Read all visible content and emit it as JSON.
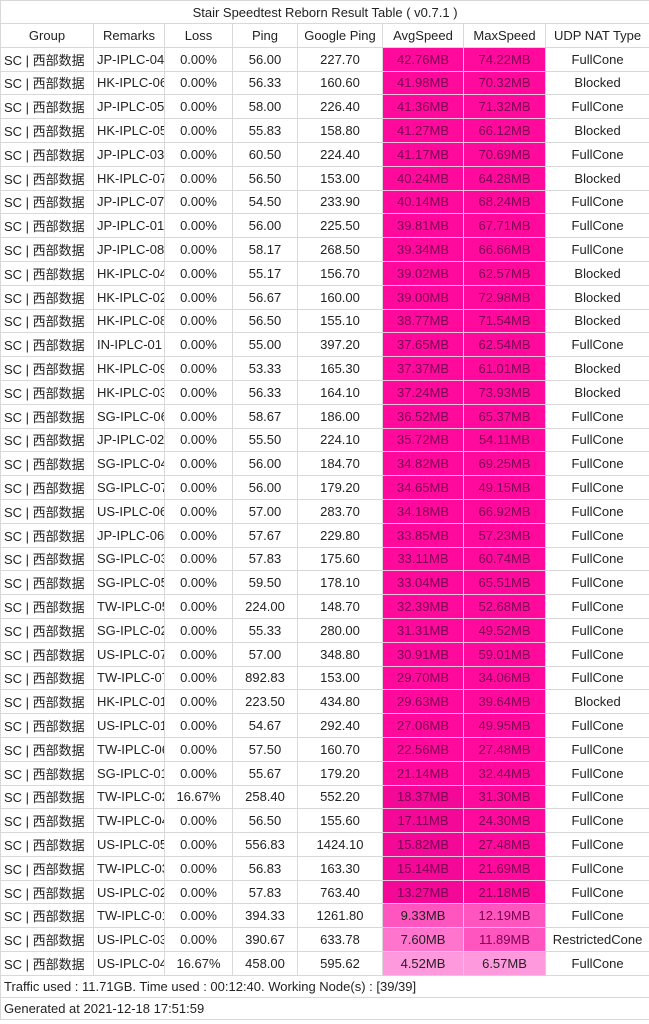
{
  "title": "Stair Speedtest Reborn Result Table ( v0.7.1 )",
  "columns": [
    "Group",
    "Remarks",
    "Loss",
    "Ping",
    "Google Ping",
    "AvgSpeed",
    "MaxSpeed",
    "UDP NAT Type"
  ],
  "rows": [
    [
      "SC | 西部数据",
      "JP-IPLC-04",
      "0.00%",
      "56.00",
      "227.70",
      "42.76MB",
      "74.22MB",
      "FullCone"
    ],
    [
      "SC | 西部数据",
      "HK-IPLC-06",
      "0.00%",
      "56.33",
      "160.60",
      "41.98MB",
      "70.32MB",
      "Blocked"
    ],
    [
      "SC | 西部数据",
      "JP-IPLC-05",
      "0.00%",
      "58.00",
      "226.40",
      "41.36MB",
      "71.32MB",
      "FullCone"
    ],
    [
      "SC | 西部数据",
      "HK-IPLC-05",
      "0.00%",
      "55.83",
      "158.80",
      "41.27MB",
      "66.12MB",
      "Blocked"
    ],
    [
      "SC | 西部数据",
      "JP-IPLC-03",
      "0.00%",
      "60.50",
      "224.40",
      "41.17MB",
      "70.69MB",
      "FullCone"
    ],
    [
      "SC | 西部数据",
      "HK-IPLC-07",
      "0.00%",
      "56.50",
      "153.00",
      "40.24MB",
      "64.28MB",
      "Blocked"
    ],
    [
      "SC | 西部数据",
      "JP-IPLC-07",
      "0.00%",
      "54.50",
      "233.90",
      "40.14MB",
      "68.24MB",
      "FullCone"
    ],
    [
      "SC | 西部数据",
      "JP-IPLC-01",
      "0.00%",
      "56.00",
      "225.50",
      "39.81MB",
      "67.71MB",
      "FullCone"
    ],
    [
      "SC | 西部数据",
      "JP-IPLC-08",
      "0.00%",
      "58.17",
      "268.50",
      "39.34MB",
      "66.66MB",
      "FullCone"
    ],
    [
      "SC | 西部数据",
      "HK-IPLC-04",
      "0.00%",
      "55.17",
      "156.70",
      "39.02MB",
      "62.57MB",
      "Blocked"
    ],
    [
      "SC | 西部数据",
      "HK-IPLC-02",
      "0.00%",
      "56.67",
      "160.00",
      "39.00MB",
      "72.98MB",
      "Blocked"
    ],
    [
      "SC | 西部数据",
      "HK-IPLC-08",
      "0.00%",
      "56.50",
      "155.10",
      "38.77MB",
      "71.54MB",
      "Blocked"
    ],
    [
      "SC | 西部数据",
      "IN-IPLC-01",
      "0.00%",
      "55.00",
      "397.20",
      "37.65MB",
      "62.54MB",
      "FullCone"
    ],
    [
      "SC | 西部数据",
      "HK-IPLC-09",
      "0.00%",
      "53.33",
      "165.30",
      "37.37MB",
      "61.01MB",
      "Blocked"
    ],
    [
      "SC | 西部数据",
      "HK-IPLC-03",
      "0.00%",
      "56.33",
      "164.10",
      "37.24MB",
      "73.93MB",
      "Blocked"
    ],
    [
      "SC | 西部数据",
      "SG-IPLC-06",
      "0.00%",
      "58.67",
      "186.00",
      "36.52MB",
      "65.37MB",
      "FullCone"
    ],
    [
      "SC | 西部数据",
      "JP-IPLC-02",
      "0.00%",
      "55.50",
      "224.10",
      "35.72MB",
      "54.11MB",
      "FullCone"
    ],
    [
      "SC | 西部数据",
      "SG-IPLC-04",
      "0.00%",
      "56.00",
      "184.70",
      "34.82MB",
      "69.25MB",
      "FullCone"
    ],
    [
      "SC | 西部数据",
      "SG-IPLC-07",
      "0.00%",
      "56.00",
      "179.20",
      "34.65MB",
      "49.15MB",
      "FullCone"
    ],
    [
      "SC | 西部数据",
      "US-IPLC-06",
      "0.00%",
      "57.00",
      "283.70",
      "34.18MB",
      "66.92MB",
      "FullCone"
    ],
    [
      "SC | 西部数据",
      "JP-IPLC-06",
      "0.00%",
      "57.67",
      "229.80",
      "33.85MB",
      "57.23MB",
      "FullCone"
    ],
    [
      "SC | 西部数据",
      "SG-IPLC-03",
      "0.00%",
      "57.83",
      "175.60",
      "33.11MB",
      "60.74MB",
      "FullCone"
    ],
    [
      "SC | 西部数据",
      "SG-IPLC-05",
      "0.00%",
      "59.50",
      "178.10",
      "33.04MB",
      "65.51MB",
      "FullCone"
    ],
    [
      "SC | 西部数据",
      "TW-IPLC-05",
      "0.00%",
      "224.00",
      "148.70",
      "32.39MB",
      "52.68MB",
      "FullCone"
    ],
    [
      "SC | 西部数据",
      "SG-IPLC-02",
      "0.00%",
      "55.33",
      "280.00",
      "31.31MB",
      "49.52MB",
      "FullCone"
    ],
    [
      "SC | 西部数据",
      "US-IPLC-07",
      "0.00%",
      "57.00",
      "348.80",
      "30.91MB",
      "59.01MB",
      "FullCone"
    ],
    [
      "SC | 西部数据",
      "TW-IPLC-07",
      "0.00%",
      "892.83",
      "153.00",
      "29.70MB",
      "34.06MB",
      "FullCone"
    ],
    [
      "SC | 西部数据",
      "HK-IPLC-01",
      "0.00%",
      "223.50",
      "434.80",
      "29.63MB",
      "39.64MB",
      "Blocked"
    ],
    [
      "SC | 西部数据",
      "US-IPLC-01",
      "0.00%",
      "54.67",
      "292.40",
      "27.06MB",
      "49.95MB",
      "FullCone"
    ],
    [
      "SC | 西部数据",
      "TW-IPLC-06",
      "0.00%",
      "57.50",
      "160.70",
      "22.56MB",
      "27.48MB",
      "FullCone"
    ],
    [
      "SC | 西部数据",
      "SG-IPLC-01",
      "0.00%",
      "55.67",
      "179.20",
      "21.14MB",
      "32.44MB",
      "FullCone"
    ],
    [
      "SC | 西部数据",
      "TW-IPLC-02",
      "16.67%",
      "258.40",
      "552.20",
      "18.37MB",
      "31.30MB",
      "FullCone"
    ],
    [
      "SC | 西部数据",
      "TW-IPLC-04",
      "0.00%",
      "56.50",
      "155.60",
      "17.11MB",
      "24.30MB",
      "FullCone"
    ],
    [
      "SC | 西部数据",
      "US-IPLC-05",
      "0.00%",
      "556.83",
      "1424.10",
      "15.82MB",
      "27.48MB",
      "FullCone"
    ],
    [
      "SC | 西部数据",
      "TW-IPLC-03",
      "0.00%",
      "56.83",
      "163.30",
      "15.14MB",
      "21.69MB",
      "FullCone"
    ],
    [
      "SC | 西部数据",
      "US-IPLC-02",
      "0.00%",
      "57.83",
      "763.40",
      "13.27MB",
      "21.18MB",
      "FullCone"
    ],
    [
      "SC | 西部数据",
      "TW-IPLC-01",
      "0.00%",
      "394.33",
      "1261.80",
      "9.33MB",
      "12.19MB",
      "FullCone"
    ],
    [
      "SC | 西部数据",
      "US-IPLC-03",
      "0.00%",
      "390.67",
      "633.78",
      "7.60MB",
      "11.89MB",
      "RestrictedCone"
    ],
    [
      "SC | 西部数据",
      "US-IPLC-04",
      "16.67%",
      "458.00",
      "595.62",
      "4.52MB",
      "6.57MB",
      "FullCone"
    ]
  ],
  "speed_colors": {
    "high": "#ff0a9c",
    "mid": "#f40898",
    "low": "#ff55bf",
    "lower": "#ff74cc",
    "lowest": "#ff99dd"
  },
  "footer": {
    "summary": "Traffic used : 11.71GB. Time used : 00:12:40. Working Node(s) : [39/39]",
    "generated": "Generated at 2021-12-18 17:51:59"
  }
}
